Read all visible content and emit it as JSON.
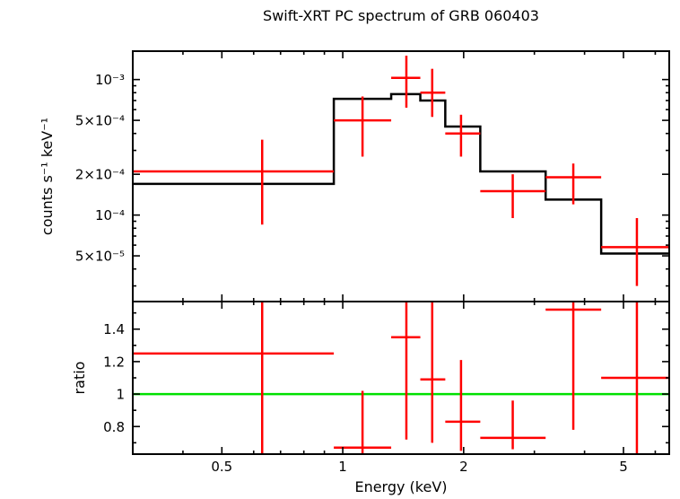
{
  "title": "Swift-XRT PC spectrum of GRB 060403",
  "colors": {
    "data": "#ff0000",
    "model": "#000000",
    "reference": "#00e000",
    "frame": "#000000",
    "background": "#ffffff",
    "text": "#000000"
  },
  "chart_data": [
    {
      "type": "scatter",
      "name": "spectrum",
      "title": "Swift-XRT PC spectrum of GRB 060403",
      "ylabel": "counts s⁻¹ keV⁻¹",
      "xscale": "log",
      "yscale": "log",
      "xlim": [
        0.3,
        6.5
      ],
      "ylim": [
        2.3e-05,
        0.00162
      ],
      "xticks": [
        {
          "v": 0.5,
          "label": "0.5"
        },
        {
          "v": 1,
          "label": "1"
        },
        {
          "v": 2,
          "label": "2"
        },
        {
          "v": 5,
          "label": "5"
        }
      ],
      "yticks": [
        {
          "v": 5e-05,
          "label": "5×10⁻⁵"
        },
        {
          "v": 0.0001,
          "label": "10⁻⁴"
        },
        {
          "v": 0.0002,
          "label": "2×10⁻⁴"
        },
        {
          "v": 0.0005,
          "label": "5×10⁻⁴"
        },
        {
          "v": 0.001,
          "label": "10⁻³"
        }
      ],
      "points": [
        {
          "x": 0.63,
          "xlo": 0.3,
          "xhi": 0.95,
          "y": 0.00021,
          "ylo": 8.5e-05,
          "yhi": 0.00036
        },
        {
          "x": 1.12,
          "xlo": 0.95,
          "xhi": 1.32,
          "y": 0.0005,
          "ylo": 0.00027,
          "yhi": 0.00075
        },
        {
          "x": 1.44,
          "xlo": 1.32,
          "xhi": 1.56,
          "y": 0.00103,
          "ylo": 0.00062,
          "yhi": 0.0015
        },
        {
          "x": 1.67,
          "xlo": 1.56,
          "xhi": 1.8,
          "y": 0.0008,
          "ylo": 0.00053,
          "yhi": 0.0012
        },
        {
          "x": 1.97,
          "xlo": 1.8,
          "xhi": 2.2,
          "y": 0.0004,
          "ylo": 0.00027,
          "yhi": 0.00055
        },
        {
          "x": 2.65,
          "xlo": 2.2,
          "xhi": 3.2,
          "y": 0.00015,
          "ylo": 9.5e-05,
          "yhi": 0.0002
        },
        {
          "x": 3.75,
          "xlo": 3.2,
          "xhi": 4.4,
          "y": 0.00019,
          "ylo": 0.00012,
          "yhi": 0.00024
        },
        {
          "x": 5.4,
          "xlo": 4.4,
          "xhi": 6.5,
          "y": 5.8e-05,
          "ylo": 3e-05,
          "yhi": 9.5e-05
        }
      ],
      "model_steps": [
        {
          "x1": 0.3,
          "x2": 0.95,
          "y": 0.00017
        },
        {
          "x1": 0.95,
          "x2": 1.32,
          "y": 0.00072
        },
        {
          "x1": 1.32,
          "x2": 1.56,
          "y": 0.00078
        },
        {
          "x1": 1.56,
          "x2": 1.8,
          "y": 0.0007
        },
        {
          "x1": 1.8,
          "x2": 2.2,
          "y": 0.00045
        },
        {
          "x1": 2.2,
          "x2": 3.2,
          "y": 0.00021
        },
        {
          "x1": 3.2,
          "x2": 4.4,
          "y": 0.00013
        },
        {
          "x1": 4.4,
          "x2": 6.5,
          "y": 5.2e-05
        }
      ]
    },
    {
      "type": "scatter",
      "name": "ratio",
      "ylabel": "ratio",
      "xlabel": "Energy (keV)",
      "xscale": "log",
      "yscale": "linear",
      "xlim": [
        0.3,
        6.5
      ],
      "ylim": [
        0.63,
        1.57
      ],
      "reference_line": 1,
      "xticks": [
        {
          "v": 0.5,
          "label": "0.5"
        },
        {
          "v": 1,
          "label": "1"
        },
        {
          "v": 2,
          "label": "2"
        },
        {
          "v": 5,
          "label": "5"
        }
      ],
      "yticks": [
        {
          "v": 0.8,
          "label": "0.8"
        },
        {
          "v": 1,
          "label": "1"
        },
        {
          "v": 1.2,
          "label": "1.2"
        },
        {
          "v": 1.4,
          "label": "1.4"
        }
      ],
      "points": [
        {
          "x": 0.63,
          "xlo": 0.3,
          "xhi": 0.95,
          "y": 1.25,
          "ylo": 0.5,
          "yhi": 1.7
        },
        {
          "x": 1.12,
          "xlo": 0.95,
          "xhi": 1.32,
          "y": 0.67,
          "ylo": 0.5,
          "yhi": 1.02
        },
        {
          "x": 1.44,
          "xlo": 1.32,
          "xhi": 1.56,
          "y": 1.35,
          "ylo": 0.72,
          "yhi": 1.7
        },
        {
          "x": 1.67,
          "xlo": 1.56,
          "xhi": 1.8,
          "y": 1.09,
          "ylo": 0.7,
          "yhi": 1.7
        },
        {
          "x": 1.97,
          "xlo": 1.8,
          "xhi": 2.2,
          "y": 0.83,
          "ylo": 0.65,
          "yhi": 1.21
        },
        {
          "x": 2.65,
          "xlo": 2.2,
          "xhi": 3.2,
          "y": 0.73,
          "ylo": 0.66,
          "yhi": 0.96
        },
        {
          "x": 3.75,
          "xlo": 3.2,
          "xhi": 4.4,
          "y": 1.52,
          "ylo": 0.78,
          "yhi": 1.7
        },
        {
          "x": 5.4,
          "xlo": 4.4,
          "xhi": 6.5,
          "y": 1.1,
          "ylo": 0.5,
          "yhi": 1.7
        }
      ]
    }
  ]
}
